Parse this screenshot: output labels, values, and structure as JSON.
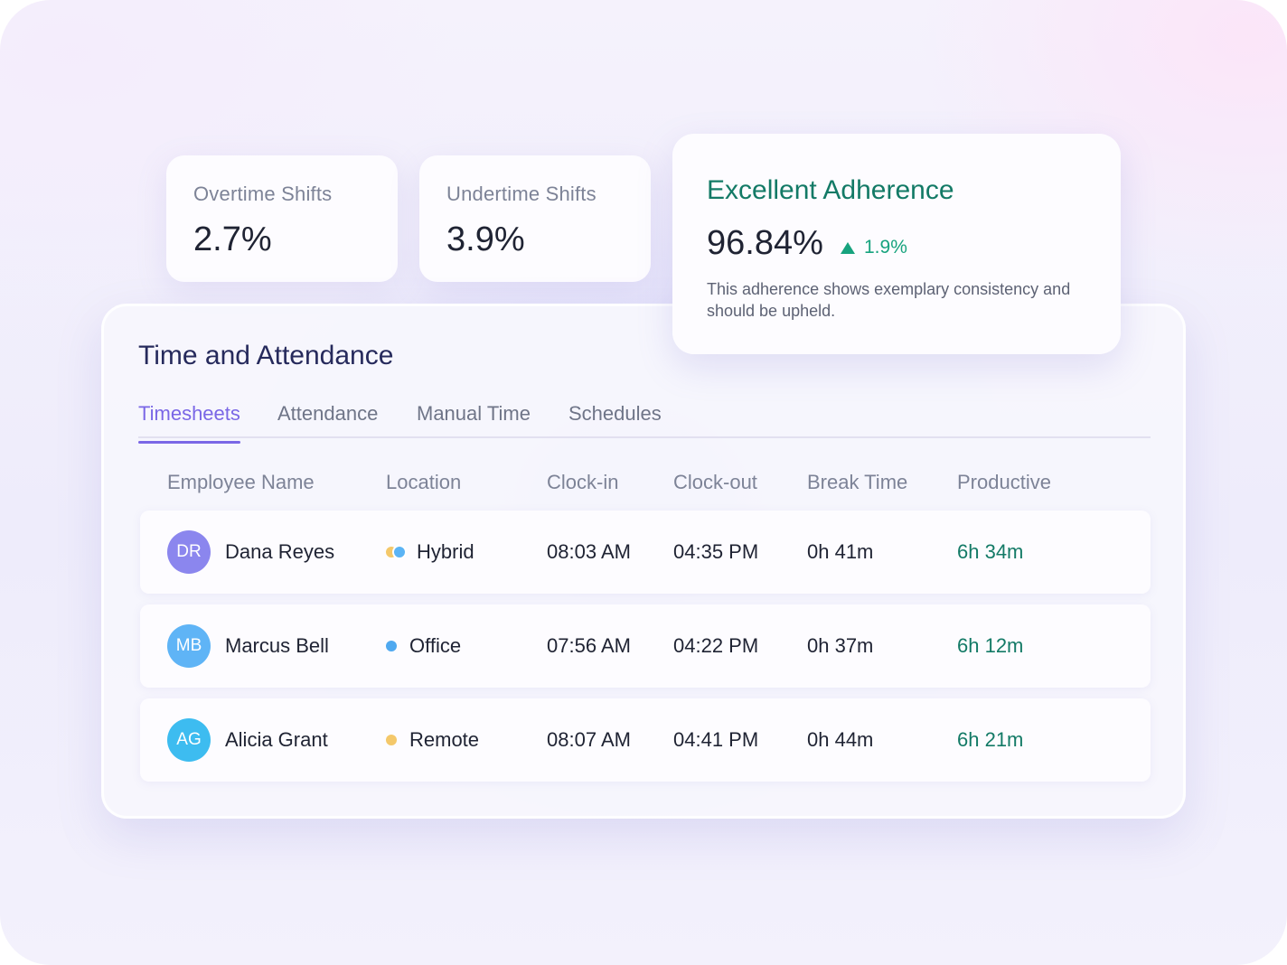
{
  "stats": {
    "overtime": {
      "label": "Overtime Shifts",
      "value": "2.7%"
    },
    "undertime": {
      "label": "Undertime Shifts",
      "value": "3.9%"
    }
  },
  "adherence": {
    "title": "Excellent Adherence",
    "value": "96.84%",
    "trend": "1.9%",
    "trend_icon": "triangle-up-icon",
    "description": "This adherence shows exemplary consistency and should be upheld."
  },
  "panel": {
    "title": "Time and Attendance",
    "tabs": [
      {
        "label": "Timesheets",
        "active": true
      },
      {
        "label": "Attendance",
        "active": false
      },
      {
        "label": "Manual Time",
        "active": false
      },
      {
        "label": "Schedules",
        "active": false
      }
    ],
    "columns": [
      "Employee Name",
      "Location",
      "Clock-in",
      "Clock-out",
      "Break Time",
      "Productive"
    ],
    "rows": [
      {
        "initials": "DR",
        "name": "Dana Reyes",
        "location": "Hybrid",
        "clock_in": "08:03 AM",
        "clock_out": "04:35 PM",
        "break_time": "0h 41m",
        "productive": "6h 34m",
        "avatar_color": "#8b86ee",
        "location_colors": [
          "#f4c86a",
          "#5bb4f5"
        ]
      },
      {
        "initials": "MB",
        "name": "Marcus Bell",
        "location": "Office",
        "clock_in": "07:56 AM",
        "clock_out": "04:22 PM",
        "break_time": "0h 37m",
        "productive": "6h 12m",
        "avatar_color": "#5fb4f6",
        "location_colors": [
          "#4fa9f0"
        ]
      },
      {
        "initials": "AG",
        "name": "Alicia Grant",
        "location": "Remote",
        "clock_in": "08:07 AM",
        "clock_out": "04:41 PM",
        "break_time": "0h 44m",
        "productive": "6h 21m",
        "avatar_color": "#3dbcf0",
        "location_colors": [
          "#f4c86a"
        ]
      }
    ]
  },
  "colors": {
    "accent": "#7a67e6",
    "positive": "#137a66",
    "trend_up": "#17a37e"
  }
}
